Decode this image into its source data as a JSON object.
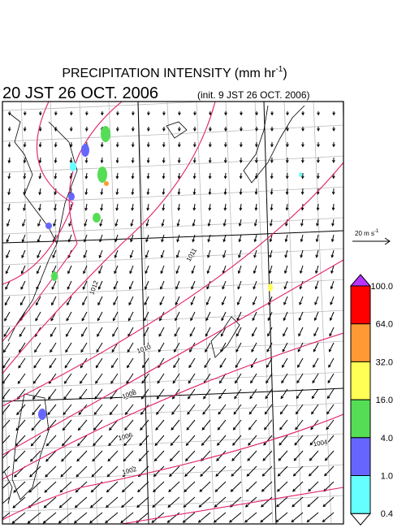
{
  "header": {
    "title": {
      "text": "PRECIPITATION INTENSITY (mm hr",
      "superscript": "-1",
      "suffix": ")"
    },
    "valid_time": "20 JST 26 OCT. 2006",
    "init_time": "(init. 9 JST 26 OCT. 2006)"
  },
  "vector_reference": {
    "text": "20 m s",
    "superscript": "-1"
  },
  "isobar_labels": [
    1011,
    1012,
    1010,
    1008,
    1006,
    1004,
    1002
  ],
  "colorbar": {
    "levels": [
      {
        "value": 100,
        "label": "100.0"
      },
      {
        "value": 64,
        "label": "64.0"
      },
      {
        "value": 32,
        "label": "32.0"
      },
      {
        "value": 16,
        "label": "16.0"
      },
      {
        "value": 4,
        "label": "4.0"
      },
      {
        "value": 1,
        "label": "1.0"
      },
      {
        "value": 0.4,
        "label": "0.4"
      }
    ],
    "colors": [
      "#ff0000",
      "#ff9933",
      "#ffff55",
      "#55dd55",
      "#6666ff",
      "#66ffff"
    ],
    "over_color": "#b833ff",
    "under_color": "#ffffff"
  }
}
